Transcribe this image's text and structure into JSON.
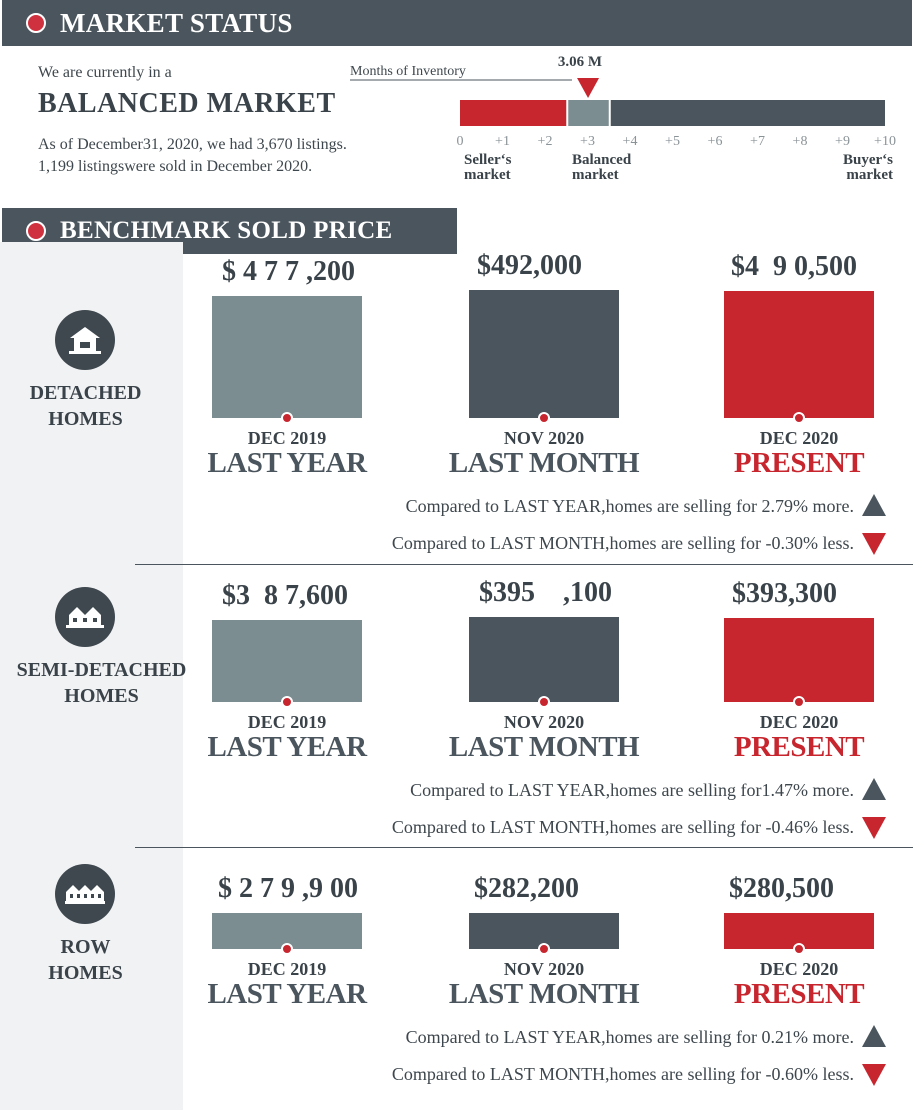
{
  "market_status": {
    "header": "MARKET STATUS",
    "intro": "We are currently in a",
    "market_type": "BALANCED MARKET",
    "listings_line": "As of December31, 2020,  we had 3,670 listings.",
    "sold_line": "1,199 listingswere sold in December 2020.",
    "inventory_label": "Months of Inventory",
    "inventory_value_label": "3.06 M",
    "inventory_value": 3.06,
    "scale_ticks": [
      "0",
      "+1",
      "+2",
      "+3",
      "+4",
      "+5",
      "+6",
      "+7",
      "+8",
      "+9",
      "+10"
    ],
    "zones": [
      {
        "name_line1": "Seller‘s",
        "name_line2": "market",
        "from": 0,
        "to": 2.5,
        "color": "#c8262f"
      },
      {
        "name_line1": "Balanced",
        "name_line2": "market",
        "from": 2.5,
        "to": 3.5,
        "color": "#7b8d90"
      },
      {
        "name_line1": "Buyer‘s",
        "name_line2": "market",
        "from": 3.5,
        "to": 10,
        "color": "#4a555d"
      }
    ]
  },
  "benchmark": {
    "header": "BENCHMARK SOLD PRICE",
    "periods": [
      {
        "date": "DEC 2019",
        "label": "LAST YEAR",
        "color": "#7b8d90"
      },
      {
        "date": "NOV 2020",
        "label": "LAST MONTH",
        "color": "#4a555d"
      },
      {
        "date": "DEC 2020",
        "label": "PRESENT",
        "color": "#c8262f"
      }
    ]
  },
  "chart_data": [
    {
      "type": "bar",
      "category": "DETACHED HOMES",
      "categories": [
        "DEC 2019",
        "NOV 2020",
        "DEC 2020"
      ],
      "values": [
        477200,
        492000,
        490500
      ],
      "value_labels": [
        "$ 4 7 7 ,200",
        "$492,000",
        "$4  9 0,500"
      ],
      "cmp_year": "Compared to LAST YEAR,homes are selling for 2.79% more.",
      "cmp_month": "Compared to LAST MONTH,homes are selling for -0.30% less."
    },
    {
      "type": "bar",
      "category": "SEMI-DETACHED HOMES",
      "categories": [
        "DEC 2019",
        "NOV 2020",
        "DEC 2020"
      ],
      "values": [
        387600,
        395100,
        393300
      ],
      "value_labels": [
        "$3  8 7,600",
        "$395    ,100",
        "$393,300"
      ],
      "cmp_year": "Compared to LAST YEAR,homes are selling for1.47% more.",
      "cmp_month": "Compared to LAST MONTH,homes are selling for -0.46% less."
    },
    {
      "type": "bar",
      "category": "ROW HOMES",
      "categories": [
        "DEC 2019",
        "NOV 2020",
        "DEC 2020"
      ],
      "values": [
        279900,
        282200,
        280500
      ],
      "value_labels": [
        "$ 2 7 9 ,9 00",
        "$282,200",
        "$280,500"
      ],
      "cmp_year": "Compared to LAST YEAR,homes are selling for 0.21% more.",
      "cmp_month": "Compared to LAST MONTH,homes are selling for -0.60% less."
    }
  ],
  "categories": [
    {
      "line1": "DETACHED",
      "line2": "HOMES",
      "icon": "house-icon"
    },
    {
      "line1": "SEMI-DETACHED",
      "line2": "HOMES",
      "icon": "semi-detached-icon"
    },
    {
      "line1": "ROW",
      "line2": "HOMES",
      "icon": "row-homes-icon"
    }
  ],
  "colors": {
    "red": "#c8262f",
    "slate": "#4a555d",
    "gray": "#7b8d90"
  }
}
